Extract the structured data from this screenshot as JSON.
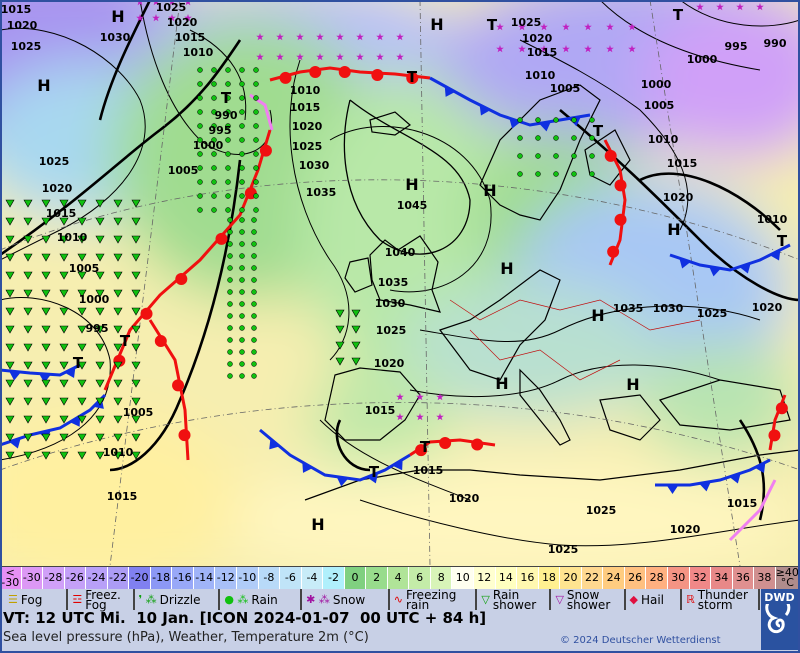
{
  "map": {
    "pressure_labels": [
      "1015",
      "1020",
      "1025",
      "1030",
      "1025",
      "1020",
      "1015",
      "1010",
      "990",
      "995",
      "1000",
      "1005",
      "1025",
      "1020",
      "1015",
      "1010",
      "1005",
      "1000",
      "995",
      "1005",
      "1010",
      "1015",
      "1010",
      "1015",
      "1020",
      "1025",
      "1030",
      "1035",
      "1045",
      "1040",
      "1035",
      "1030",
      "1025",
      "1020",
      "1015",
      "1015",
      "1020",
      "1025",
      "1020",
      "1025",
      "1015",
      "1035",
      "1030",
      "1025",
      "1020",
      "1010",
      "1020",
      "1015",
      "1010",
      "1005",
      "1000",
      "1005",
      "1010",
      "1015",
      "1020",
      "1025",
      "995",
      "990",
      "1000"
    ],
    "high_label": "H",
    "low_label": "T",
    "front_colors": {
      "cold": "#1030e0",
      "warm": "#f01010",
      "occlusion": "#f080f0"
    }
  },
  "temperature_scale": [
    {
      "label": "<\n-30",
      "color": "#e690f5"
    },
    {
      "label": "-30",
      "color": "#dc98f5"
    },
    {
      "label": "-28",
      "color": "#d0a0f8"
    },
    {
      "label": "-26",
      "color": "#c4a0f8"
    },
    {
      "label": "-24",
      "color": "#b8a0f8"
    },
    {
      "label": "-22",
      "color": "#ac9cf5"
    },
    {
      "label": "-20",
      "color": "#8080f0"
    },
    {
      "label": "-18",
      "color": "#8c98f5"
    },
    {
      "label": "-16",
      "color": "#98a8f8"
    },
    {
      "label": "-14",
      "color": "#a0b4f8"
    },
    {
      "label": "-12",
      "color": "#a8c0f8"
    },
    {
      "label": "-10",
      "color": "#b0ccf8"
    },
    {
      "label": "-8",
      "color": "#b8daf8"
    },
    {
      "label": "-6",
      "color": "#c0e4f8"
    },
    {
      "label": "-4",
      "color": "#c8ecf8"
    },
    {
      "label": "-2",
      "color": "#b0f0fc"
    },
    {
      "label": "0",
      "color": "#80d080"
    },
    {
      "label": "2",
      "color": "#98dc8c"
    },
    {
      "label": "4",
      "color": "#b0e498"
    },
    {
      "label": "6",
      "color": "#c4eca8"
    },
    {
      "label": "8",
      "color": "#d8f4b8"
    },
    {
      "label": "10",
      "color": "#fffff0"
    },
    {
      "label": "12",
      "color": "#ffffd0"
    },
    {
      "label": "14",
      "color": "#ffffc0"
    },
    {
      "label": "16",
      "color": "#fff8b0"
    },
    {
      "label": "18",
      "color": "#fff090"
    },
    {
      "label": "20",
      "color": "#ffe490"
    },
    {
      "label": "22",
      "color": "#ffd890"
    },
    {
      "label": "24",
      "color": "#ffcc80"
    },
    {
      "label": "26",
      "color": "#ffc080"
    },
    {
      "label": "28",
      "color": "#ffb080"
    },
    {
      "label": "30",
      "color": "#f49484"
    },
    {
      "label": "32",
      "color": "#f08888"
    },
    {
      "label": "34",
      "color": "#e88888"
    },
    {
      "label": "36",
      "color": "#e09090"
    },
    {
      "label": "38",
      "color": "#d09090"
    },
    {
      "label": "≥40\n°C",
      "color": "#b08c8c"
    }
  ],
  "weather_legend": [
    {
      "label": "Fog",
      "icon": "fog-icon",
      "glyph": "☰",
      "color": "#c0a000"
    },
    {
      "label": "Freez.\nFog",
      "icon": "freezing-fog-icon",
      "glyph": "☲",
      "color": "#e00000"
    },
    {
      "label": "Drizzle",
      "icon": "drizzle-icon",
      "glyph": "❜ ⁂",
      "color": "#10a010"
    },
    {
      "label": "Rain",
      "icon": "rain-icon",
      "glyph": "● ⁂",
      "color": "#10c010"
    },
    {
      "label": "Snow",
      "icon": "snow-icon",
      "glyph": "✱ ⁂",
      "color": "#a010a0"
    },
    {
      "label": "Freezing\nrain",
      "icon": "freezing-rain-icon",
      "glyph": "∿",
      "color": "#e00000"
    },
    {
      "label": "Rain\nshower",
      "icon": "rain-shower-icon",
      "glyph": "▽",
      "color": "#10a010"
    },
    {
      "label": "Snow\nshower",
      "icon": "snow-shower-icon",
      "glyph": "▽",
      "color": "#a010a0"
    },
    {
      "label": "Hail",
      "icon": "hail-icon",
      "glyph": "◆",
      "color": "#e01040"
    },
    {
      "label": "Thunder\nstorm",
      "icon": "thunderstorm-icon",
      "glyph": "ℝ",
      "color": "#e00000"
    }
  ],
  "valid_time": "VT: 12 UTC Mi.  10 Jan. [ICON 2024-01-07  00 UTC + 84 h]",
  "subtitle": "Sea level pressure (hPa), Weather, Temperature 2m (°C)",
  "copyright": "© 2024 Deutscher Wetterdienst",
  "logo": {
    "text": "DWD",
    "color": "#2a52a0"
  }
}
